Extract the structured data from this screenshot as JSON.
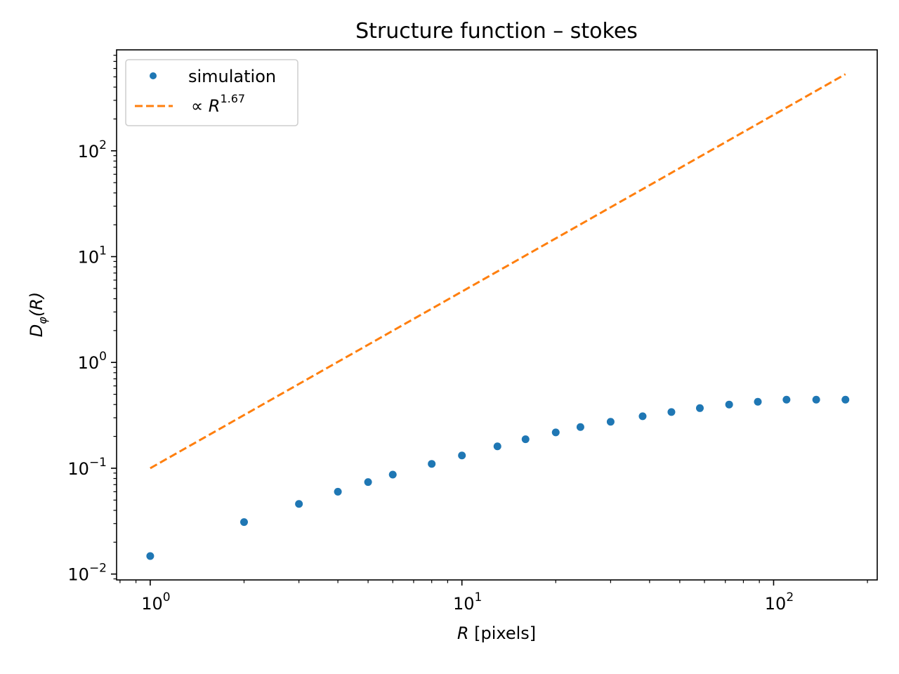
{
  "chart_data": {
    "type": "scatter",
    "title": "Structure function – stokes",
    "xlabel_var": "R",
    "xlabel_unit": " [pixels]",
    "ylabel_main": "D",
    "ylabel_sub": "φ",
    "ylabel_arg": "(R)",
    "xscale": "log",
    "yscale": "log",
    "xlim": [
      0.78,
      215
    ],
    "ylim": [
      0.0088,
      900
    ],
    "grid": false,
    "legend_position": "top-left",
    "x_ticks": [
      {
        "value": 1,
        "base": "10",
        "exp": "0"
      },
      {
        "value": 10,
        "base": "10",
        "exp": "1"
      },
      {
        "value": 100,
        "base": "10",
        "exp": "2"
      }
    ],
    "y_ticks": [
      {
        "value": 0.01,
        "base": "10",
        "exp": "−2"
      },
      {
        "value": 0.1,
        "base": "10",
        "exp": "−1"
      },
      {
        "value": 1,
        "base": "10",
        "exp": "0"
      },
      {
        "value": 10,
        "base": "10",
        "exp": "1"
      },
      {
        "value": 100,
        "base": "10",
        "exp": "2"
      }
    ],
    "series": [
      {
        "name": "simulation",
        "style": "points",
        "color": "#1f77b4",
        "x": [
          1,
          2,
          3,
          4,
          5,
          6,
          8,
          10,
          13,
          16,
          20,
          24,
          30,
          38,
          47,
          58,
          72,
          89,
          110,
          137,
          170
        ],
        "y": [
          0.0148,
          0.031,
          0.046,
          0.06,
          0.074,
          0.087,
          0.11,
          0.132,
          0.161,
          0.188,
          0.218,
          0.245,
          0.275,
          0.31,
          0.34,
          0.37,
          0.4,
          0.425,
          0.445,
          0.445,
          0.445
        ]
      },
      {
        "name_prefix": "∝ ",
        "name_var": "R",
        "name_exp": "1.67",
        "style": "dashed-line",
        "color": "#ff7f0e",
        "x": [
          1,
          170
        ],
        "y": [
          0.1,
          530
        ]
      }
    ]
  }
}
